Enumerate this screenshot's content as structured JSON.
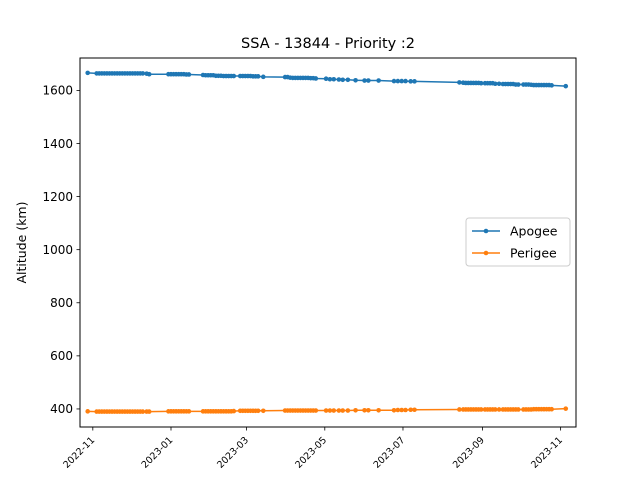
{
  "chart_data": {
    "type": "line",
    "title": "SSA - 13844 - Priority :2",
    "xlabel": "",
    "ylabel": "Altitude (km)",
    "ylim": [
      332,
      1722
    ],
    "xlim": [
      "2022-10-22",
      "2023-11-13"
    ],
    "yticks": [
      400,
      600,
      800,
      1000,
      1200,
      1400,
      1600
    ],
    "xticks": [
      "2022-11",
      "2023-01",
      "2023-03",
      "2023-05",
      "2023-07",
      "2023-09",
      "2023-11"
    ],
    "legend_position": "center-right",
    "grid": false,
    "x": [
      "2022-10-28",
      "2022-11-04",
      "2022-11-06",
      "2022-11-08",
      "2022-11-10",
      "2022-11-12",
      "2022-11-14",
      "2022-11-16",
      "2022-11-18",
      "2022-11-20",
      "2022-11-22",
      "2022-11-24",
      "2022-11-26",
      "2022-11-28",
      "2022-11-30",
      "2022-12-02",
      "2022-12-04",
      "2022-12-06",
      "2022-12-08",
      "2022-12-10",
      "2022-12-13",
      "2022-12-15",
      "2022-12-30",
      "2023-01-01",
      "2023-01-03",
      "2023-01-05",
      "2023-01-07",
      "2023-01-09",
      "2023-01-11",
      "2023-01-13",
      "2023-01-15",
      "2023-01-26",
      "2023-01-28",
      "2023-01-30",
      "2023-02-01",
      "2023-02-03",
      "2023-02-05",
      "2023-02-07",
      "2023-02-09",
      "2023-02-11",
      "2023-02-13",
      "2023-02-15",
      "2023-02-17",
      "2023-02-19",
      "2023-02-24",
      "2023-02-26",
      "2023-02-28",
      "2023-03-02",
      "2023-03-04",
      "2023-03-06",
      "2023-03-08",
      "2023-03-10",
      "2023-03-14",
      "2023-03-31",
      "2023-04-02",
      "2023-04-04",
      "2023-04-06",
      "2023-04-08",
      "2023-04-10",
      "2023-04-12",
      "2023-04-14",
      "2023-04-16",
      "2023-04-18",
      "2023-04-20",
      "2023-04-22",
      "2023-04-24",
      "2023-05-02",
      "2023-05-05",
      "2023-05-08",
      "2023-05-12",
      "2023-05-15",
      "2023-05-19",
      "2023-05-25",
      "2023-06-01",
      "2023-06-04",
      "2023-06-12",
      "2023-06-24",
      "2023-06-27",
      "2023-06-30",
      "2023-07-03",
      "2023-07-07",
      "2023-07-10",
      "2023-08-14",
      "2023-08-17",
      "2023-08-19",
      "2023-08-21",
      "2023-08-23",
      "2023-08-25",
      "2023-08-27",
      "2023-08-29",
      "2023-08-31",
      "2023-09-03",
      "2023-09-05",
      "2023-09-07",
      "2023-09-09",
      "2023-09-11",
      "2023-09-14",
      "2023-09-17",
      "2023-09-19",
      "2023-09-21",
      "2023-09-23",
      "2023-09-25",
      "2023-09-27",
      "2023-09-29",
      "2023-10-03",
      "2023-10-05",
      "2023-10-07",
      "2023-10-09",
      "2023-10-11",
      "2023-10-13",
      "2023-10-15",
      "2023-10-17",
      "2023-10-19",
      "2023-10-21",
      "2023-10-23",
      "2023-10-25",
      "2023-11-05"
    ],
    "series": [
      {
        "name": "Apogee",
        "color": "#1f77b4",
        "values": [
          1666,
          1664,
          1664,
          1664,
          1664,
          1664,
          1664,
          1664,
          1664,
          1664,
          1664,
          1664,
          1664,
          1664,
          1664,
          1664,
          1664,
          1664,
          1664,
          1664,
          1663,
          1661,
          1661,
          1661,
          1661,
          1661,
          1661,
          1661,
          1661,
          1660,
          1660,
          1658,
          1657,
          1657,
          1657,
          1657,
          1655,
          1655,
          1655,
          1654,
          1654,
          1654,
          1654,
          1654,
          1654,
          1654,
          1654,
          1654,
          1654,
          1653,
          1653,
          1653,
          1651,
          1650,
          1650,
          1648,
          1647,
          1647,
          1647,
          1647,
          1647,
          1647,
          1647,
          1646,
          1646,
          1645,
          1644,
          1642,
          1642,
          1641,
          1640,
          1640,
          1638,
          1637,
          1637,
          1637,
          1635,
          1635,
          1635,
          1635,
          1634,
          1634,
          1630,
          1629,
          1628,
          1628,
          1628,
          1628,
          1628,
          1628,
          1627,
          1627,
          1627,
          1627,
          1627,
          1625,
          1625,
          1624,
          1624,
          1624,
          1624,
          1624,
          1622,
          1622,
          1622,
          1622,
          1622,
          1621,
          1620,
          1620,
          1620,
          1620,
          1620,
          1620,
          1620,
          1619,
          1616
        ]
      },
      {
        "name": "Perigee",
        "color": "#ff7f0e",
        "values": [
          391,
          390,
          390,
          390,
          390,
          390,
          390,
          390,
          390,
          390,
          390,
          390,
          390,
          390,
          390,
          390,
          390,
          390,
          390,
          390,
          390,
          390,
          391,
          391,
          391,
          391,
          391,
          391,
          391,
          391,
          391,
          391,
          391,
          391,
          391,
          391,
          391,
          391,
          391,
          391,
          391,
          391,
          391,
          392,
          393,
          393,
          393,
          393,
          393,
          393,
          393,
          393,
          393,
          394,
          394,
          394,
          394,
          394,
          394,
          394,
          394,
          394,
          394,
          394,
          394,
          394,
          394,
          394,
          394,
          394,
          394,
          394,
          395,
          395,
          395,
          395,
          395,
          396,
          396,
          396,
          397,
          397,
          398,
          398,
          398,
          398,
          398,
          398,
          398,
          398,
          398,
          398,
          398,
          398,
          398,
          398,
          398,
          398,
          398,
          398,
          398,
          398,
          398,
          398,
          398,
          398,
          398,
          398,
          399,
          399,
          399,
          399,
          399,
          399,
          399,
          399,
          401
        ]
      }
    ]
  }
}
